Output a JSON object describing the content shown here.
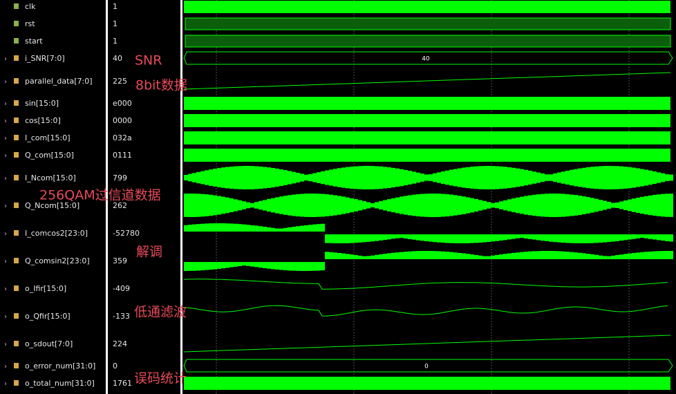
{
  "signals": [
    {
      "name": "clk",
      "value": "1"
    },
    {
      "name": "rst",
      "value": "1"
    },
    {
      "name": "start",
      "value": "1"
    },
    {
      "name": "i_SNR[7:0]",
      "value": "40",
      "bus_label": "40"
    },
    {
      "name": "parallel_data[7:0]",
      "value": "225"
    },
    {
      "name": "sin[15:0]",
      "value": "e000"
    },
    {
      "name": "cos[15:0]",
      "value": "0000"
    },
    {
      "name": "I_com[15:0]",
      "value": "032a"
    },
    {
      "name": "Q_com[15:0]",
      "value": "0111"
    },
    {
      "name": "I_Ncom[15:0]",
      "value": "799"
    },
    {
      "name": "Q_Ncom[15:0]",
      "value": "262"
    },
    {
      "name": "I_comcos2[23:0]",
      "value": "-52780"
    },
    {
      "name": "Q_comsin2[23:0]",
      "value": "359"
    },
    {
      "name": "o_Ifir[15:0]",
      "value": "-409"
    },
    {
      "name": "o_Qfir[15:0]",
      "value": "-133"
    },
    {
      "name": "o_sdout[7:0]",
      "value": "224"
    },
    {
      "name": "o_error_num[31:0]",
      "value": "0",
      "bus_label": "0"
    },
    {
      "name": "o_total_num[31:0]",
      "value": "1761"
    }
  ],
  "annotations": [
    "SNR",
    "8bit数据",
    "256QAM过信道数据",
    "解调",
    "低通滤波",
    "误码统计"
  ]
}
